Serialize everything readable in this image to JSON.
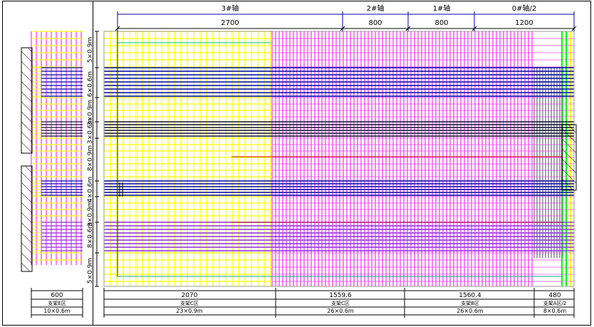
{
  "top_axis": {
    "labels": [
      "3#轴",
      "2#轴",
      "1#轴",
      "0#轴/2"
    ],
    "spans": [
      "2700",
      "800",
      "800",
      "1200"
    ]
  },
  "left_axis": {
    "labels": [
      "5×0.9m",
      "6×0.6m",
      "3×0.9m",
      "3×0.6m",
      "8×0.9m",
      "4×0.6m",
      "3×0.9m",
      "8×0.6m",
      "5×0.9m"
    ]
  },
  "bottom_left": {
    "width": "600",
    "zone": "支架E区",
    "spacing": "10×0.6m"
  },
  "bottom_zones": [
    {
      "width": "2070",
      "zone": "支架C区",
      "spacing": "23×0.9m"
    },
    {
      "width": "1559.6",
      "zone": "支架C区",
      "spacing": "26×0.6m"
    },
    {
      "width": "1560.4",
      "zone": "支架B区",
      "spacing": "26×0.6m"
    },
    {
      "width": "480",
      "zone": "支架A区/2",
      "spacing": "8×0.6m"
    }
  ],
  "colors": {
    "yellow": "#ffff00",
    "magenta": "#ff00ff",
    "navy": "#0000aa",
    "purple": "#8a2be2",
    "green": "#00ff00",
    "black": "#000000"
  }
}
